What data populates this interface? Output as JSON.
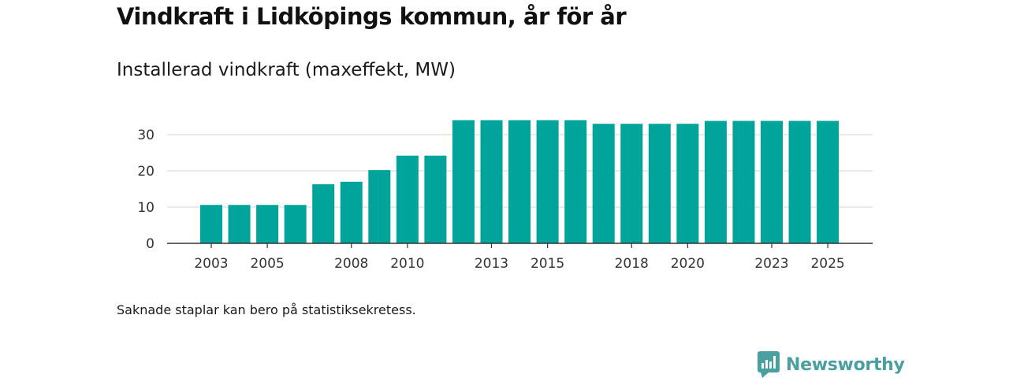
{
  "header": {
    "title": "Vindkraft i Lidköpings kommun, år för år",
    "subtitle": "Installerad vindkraft (maxeffekt, MW)"
  },
  "footnote": "Saknade staplar kan bero på statistiksekretess.",
  "brand": {
    "name": "Newsworthy",
    "color": "#4a9fa0"
  },
  "colors": {
    "bar": "#00a49a",
    "grid": "#dddddd",
    "axis": "#333333"
  },
  "chart_data": {
    "type": "bar",
    "title": "Installerad vindkraft (maxeffekt, MW)",
    "xlabel": "",
    "ylabel": "",
    "ylim": [
      0,
      35
    ],
    "yticks": [
      0,
      10,
      20,
      30
    ],
    "categories": [
      2003,
      2004,
      2005,
      2006,
      2007,
      2008,
      2009,
      2010,
      2011,
      2012,
      2013,
      2014,
      2015,
      2016,
      2017,
      2018,
      2019,
      2020,
      2021,
      2022,
      2023,
      2024,
      2025
    ],
    "values": [
      10.6,
      10.6,
      10.6,
      10.6,
      16.3,
      17.0,
      20.2,
      24.2,
      24.2,
      34.0,
      34.0,
      34.0,
      34.0,
      34.0,
      33.0,
      33.0,
      33.0,
      33.0,
      33.8,
      33.8,
      33.8,
      33.8,
      33.8
    ],
    "xtick_labels": [
      "2003",
      "2005",
      "2008",
      "2010",
      "2013",
      "2015",
      "2018",
      "2020",
      "2023",
      "2025"
    ],
    "grid": true,
    "legend": "none"
  }
}
